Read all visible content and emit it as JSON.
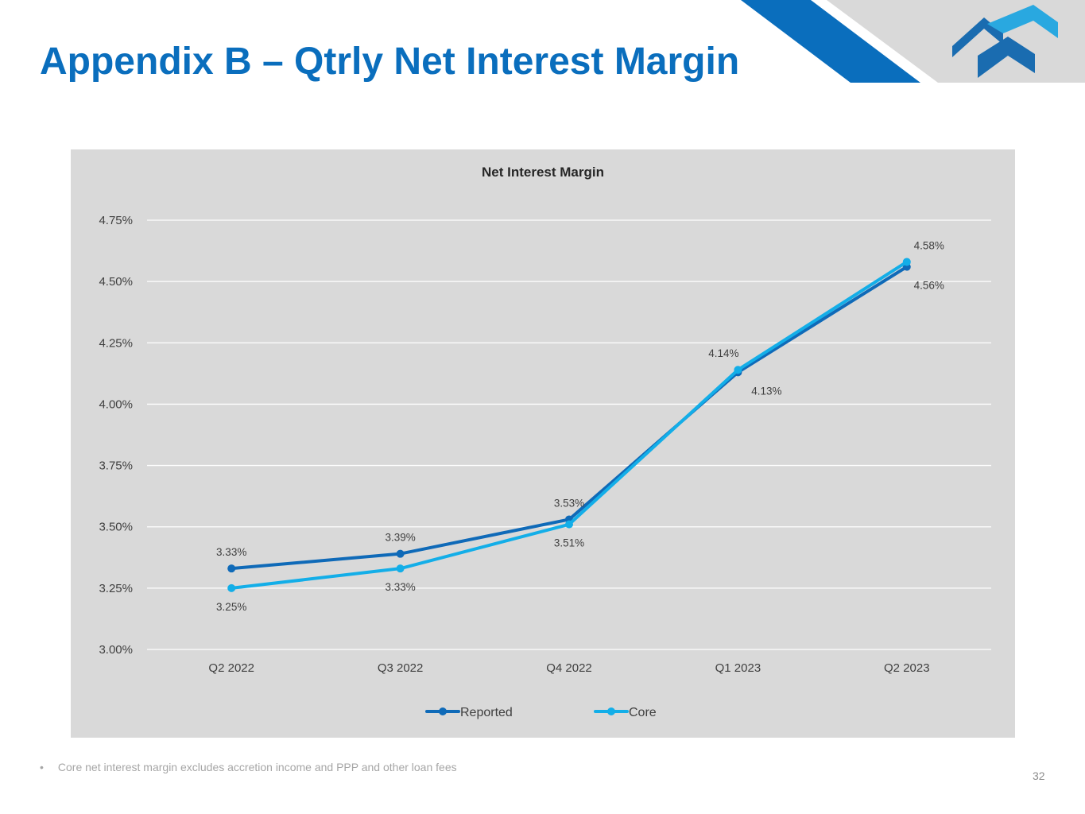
{
  "slide": {
    "title": "Appendix B – Qtrly Net Interest Margin",
    "footnote": "Core net interest margin excludes accretion income and PPP and other loan fees",
    "footnote_bullet": "•",
    "page_number": "32"
  },
  "colors": {
    "title": "#0a6ebd",
    "reported": "#0f6ab8",
    "core": "#13aee8",
    "panel_bg": "#d9d9d9",
    "logo_dark": "#1a6cb0",
    "logo_light": "#29a8e0"
  },
  "chart_data": {
    "type": "line",
    "title": "Net Interest Margin",
    "categories": [
      "Q2 2022",
      "Q3 2022",
      "Q4 2022",
      "Q1 2023",
      "Q2 2023"
    ],
    "ylim": [
      3.0,
      4.75
    ],
    "yticks": [
      3.0,
      3.25,
      3.5,
      3.75,
      4.0,
      4.25,
      4.5,
      4.75
    ],
    "ytick_labels": [
      "3.00%",
      "3.25%",
      "3.50%",
      "3.75%",
      "4.00%",
      "4.25%",
      "4.50%",
      "4.75%"
    ],
    "grid": true,
    "legend": "bottom",
    "xlabel": "",
    "ylabel": "",
    "series": [
      {
        "name": "Reported",
        "color": "#0f6ab8",
        "values": [
          3.33,
          3.39,
          3.53,
          4.13,
          4.56
        ],
        "labels": [
          "3.33%",
          "3.39%",
          "3.53%",
          "4.13%",
          "4.56%"
        ],
        "label_pos": [
          "above",
          "above",
          "above",
          "below",
          "below"
        ]
      },
      {
        "name": "Core",
        "color": "#13aee8",
        "values": [
          3.25,
          3.33,
          3.51,
          4.14,
          4.58
        ],
        "labels": [
          "3.25%",
          "3.33%",
          "3.51%",
          "4.14%",
          "4.58%"
        ],
        "label_pos": [
          "below",
          "below",
          "below",
          "above",
          "above"
        ]
      }
    ]
  }
}
